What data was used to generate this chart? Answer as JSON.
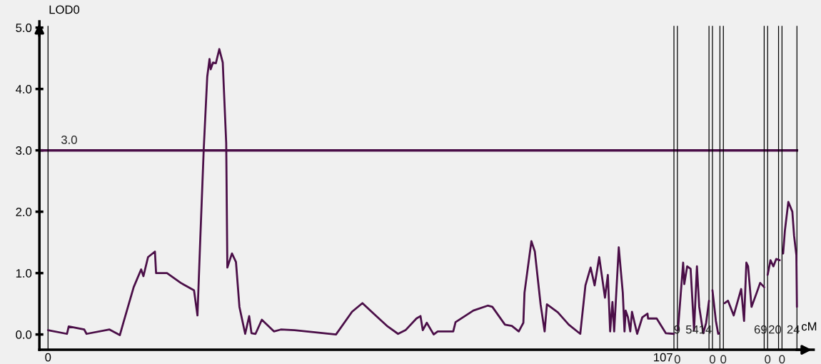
{
  "chart_data": {
    "type": "line",
    "xlabel": "cM",
    "ylabel": "LOD0",
    "xlim": [
      -1.5,
      133.2
    ],
    "ylim": [
      -0.25,
      5.1
    ],
    "xticks": [
      {
        "value": 0,
        "label": "0"
      },
      {
        "value": 107,
        "label": "107"
      }
    ],
    "yticks": [
      {
        "value": 0,
        "label": "0.0"
      },
      {
        "value": 1,
        "label": "1.0"
      },
      {
        "value": 2,
        "label": "2.0"
      },
      {
        "value": 3,
        "label": "3.0"
      },
      {
        "value": 4,
        "label": "4.0"
      },
      {
        "value": 5,
        "label": "5.0"
      }
    ],
    "x": [
      0,
      3.3,
      3.6,
      6.3,
      6.7,
      10.7,
      12.5,
      13.1,
      14.9,
      16.2,
      16.6,
      17.4,
      18.6,
      18.8,
      20.7,
      23.1,
      25.4,
      26.0,
      26.5,
      27.1,
      27.7,
      28.1,
      28.3,
      28.7,
      29.2,
      29.8,
      30.4,
      31.0,
      31.2,
      32.0,
      32.7,
      33.3,
      34.3,
      35.0,
      35.4,
      36.1,
      37.2,
      39.3,
      40.5,
      42.9,
      50.1,
      52.9,
      54.7,
      57.1,
      59.1,
      60.9,
      62.2,
      64.1,
      64.8,
      65.2,
      65.9,
      67.1,
      67.8,
      70.5,
      70.9,
      74.0,
      76.5,
      77.3,
      79.5,
      80.7,
      81.9,
      82.7,
      82.9,
      84.1,
      84.7,
      85.7,
      86.4,
      86.8,
      88.7,
      90.6,
      92.6,
      93.5,
      94.4,
      95.1,
      95.9,
      96.9,
      97.4,
      97.8,
      98.2,
      98.5,
      99.3,
      100.0,
      100.3,
      100.5,
      100.9,
      101.3,
      101.6,
      102.5,
      103.4,
      104.3,
      104.4,
      105.9,
      107.5,
      108.9,
      109.2,
      109.6,
      110.5,
      110.7,
      111.2,
      111.8,
      112.4,
      112.9,
      113.3,
      114.0,
      114.5,
      115.0,
      115.3,
      115.6,
      116.2,
      116.6,
      116.8,
      117.2,
      117.7,
      118.3,
      119.3,
      120.5,
      120.6,
      121.1,
      121.5,
      121.8,
      122.4,
      123.3,
      123.9,
      124.6,
      124.9,
      125.2,
      125.7,
      126.2,
      126.7,
      127.3,
      127.6,
      127.9,
      128.2,
      128.8,
      129.5,
      129.8,
      130.2,
      130.3
    ],
    "series": [
      {
        "color": "#4b0f48",
        "values": [
          0.07,
          0.01,
          0.13,
          0.08,
          0.01,
          0.08,
          -0.01,
          0.19,
          0.77,
          1.06,
          0.95,
          1.26,
          1.35,
          1.0,
          1.0,
          0.84,
          0.72,
          0.31,
          1.58,
          3.04,
          4.2,
          4.49,
          4.32,
          4.43,
          4.42,
          4.65,
          4.43,
          3.12,
          1.09,
          1.32,
          1.18,
          0.45,
          0.01,
          0.3,
          0.02,
          0.01,
          0.24,
          0.05,
          0.08,
          0.07,
          0.0,
          0.37,
          0.51,
          0.3,
          0.13,
          0.01,
          0.07,
          0.26,
          0.3,
          0.07,
          0.19,
          0.0,
          0.05,
          0.05,
          0.2,
          0.39,
          0.47,
          0.45,
          0.16,
          0.14,
          0.05,
          0.19,
          0.68,
          1.52,
          1.35,
          0.49,
          0.05,
          0.49,
          0.36,
          0.16,
          0.01,
          0.8,
          1.09,
          0.8,
          1.26,
          0.6,
          0.97,
          0.05,
          0.53,
          0.05,
          1.42,
          0.68,
          0.05,
          0.39,
          0.28,
          0.05,
          0.37,
          0.01,
          0.28,
          0.34,
          0.26,
          0.26,
          0.02,
          0.01,
          null,
          0.07,
          1.17,
          0.82,
          1.11,
          1.07,
          0.07,
          1.11,
          0.45,
          0.02,
          0.19,
          0.55,
          null,
          0.72,
          0.22,
          0.01,
          0.02,
          null,
          0.51,
          0.55,
          0.31,
          0.71,
          0.74,
          0.22,
          1.17,
          1.11,
          0.45,
          0.68,
          0.84,
          0.77,
          null,
          0.97,
          1.21,
          1.11,
          1.23,
          1.21,
          null,
          1.32,
          1.69,
          2.16,
          2.0,
          1.61,
          1.29,
          0.45
        ]
      }
    ],
    "ref_lines": [
      {
        "axis": "y",
        "value": 3.0,
        "label": "3.0",
        "color": "#4b0f48"
      },
      {
        "axis": "x",
        "value": 0,
        "color": "#000000"
      },
      {
        "axis": "x",
        "value": 108.9,
        "color": "#000000"
      },
      {
        "axis": "x",
        "value": 109.5,
        "color": "#000000"
      },
      {
        "axis": "x",
        "value": 115.0,
        "color": "#000000"
      },
      {
        "axis": "x",
        "value": 115.6,
        "color": "#000000"
      },
      {
        "axis": "x",
        "value": 116.9,
        "color": "#000000"
      },
      {
        "axis": "x",
        "value": 117.5,
        "color": "#000000"
      },
      {
        "axis": "x",
        "value": 124.6,
        "color": "#000000"
      },
      {
        "axis": "x",
        "value": 125.2,
        "color": "#000000"
      },
      {
        "axis": "x",
        "value": 127.1,
        "color": "#000000"
      },
      {
        "axis": "x",
        "value": 127.7,
        "color": "#000000"
      },
      {
        "axis": "x",
        "value": 130.3,
        "color": "#000000"
      }
    ],
    "annotations": [
      {
        "text": "9",
        "x": 109.5,
        "y": 0
      },
      {
        "text": "5414",
        "x": 115.0,
        "y": 0
      },
      {
        "text": "69",
        "x": 124.6,
        "y": 0
      },
      {
        "text": "20",
        "x": 127.1,
        "y": 0
      },
      {
        "text": "24",
        "x": 130.3,
        "y": 0
      },
      {
        "text": "0",
        "x": 109.5,
        "y": -0.25
      },
      {
        "text": "0",
        "x": 115.6,
        "y": -0.25
      },
      {
        "text": "0",
        "x": 117.5,
        "y": -0.25
      },
      {
        "text": "0",
        "x": 125.2,
        "y": -0.25
      },
      {
        "text": "0",
        "x": 127.7,
        "y": -0.25
      }
    ]
  }
}
